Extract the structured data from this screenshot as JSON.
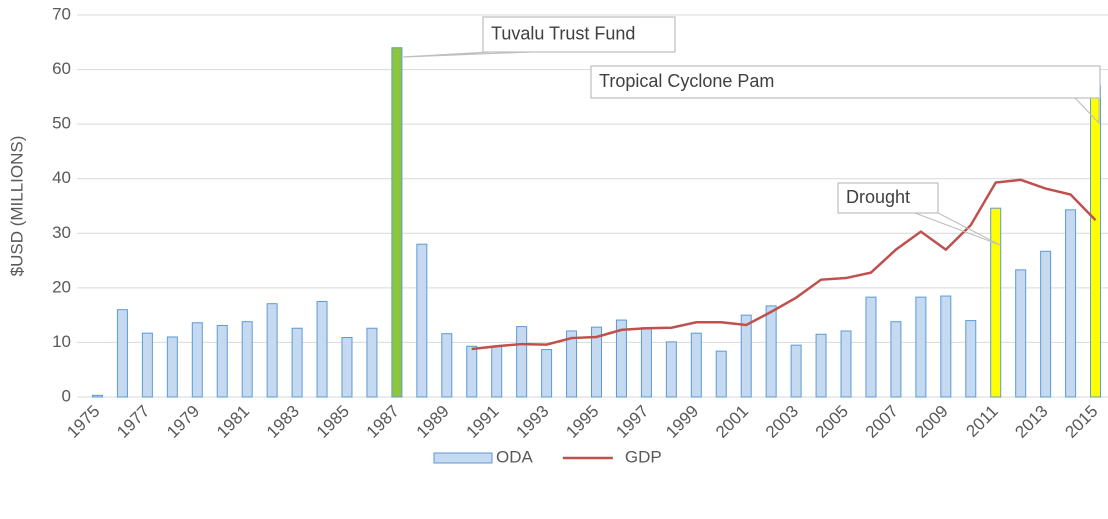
{
  "chart_data": {
    "type": "bar",
    "ylabel": "$USD (MILLIONS)",
    "categories": [
      "1975",
      null,
      "1977",
      null,
      "1979",
      null,
      "1981",
      null,
      "1983",
      null,
      "1985",
      null,
      "1987",
      null,
      "1989",
      null,
      "1991",
      null,
      "1993",
      null,
      "1995",
      null,
      "1997",
      null,
      "1999",
      null,
      "2001",
      null,
      "2003",
      null,
      "2005",
      null,
      "2007",
      null,
      "2009",
      null,
      "2011",
      null,
      "2013",
      null,
      "2015"
    ],
    "series": [
      {
        "name": "ODA",
        "type": "bar",
        "color": "#5b9bd5",
        "point_colors": [
          "#c5d9f1",
          "#c5d9f1",
          "#c5d9f1",
          "#c5d9f1",
          "#c5d9f1",
          "#c5d9f1",
          "#c5d9f1",
          "#c5d9f1",
          "#c5d9f1",
          "#c5d9f1",
          "#c5d9f1",
          "#c5d9f1",
          "#8cc63f",
          "#c5d9f1",
          "#c5d9f1",
          "#c5d9f1",
          "#c5d9f1",
          "#c5d9f1",
          "#c5d9f1",
          "#c5d9f1",
          "#c5d9f1",
          "#c5d9f1",
          "#c5d9f1",
          "#c5d9f1",
          "#c5d9f1",
          "#c5d9f1",
          "#c5d9f1",
          "#c5d9f1",
          "#c5d9f1",
          "#c5d9f1",
          "#c5d9f1",
          "#c5d9f1",
          "#c5d9f1",
          "#c5d9f1",
          "#c5d9f1",
          "#c5d9f1",
          "#ffff00",
          "#c5d9f1",
          "#c5d9f1",
          "#c5d9f1",
          "#ffff00"
        ],
        "values": [
          0.3,
          16,
          11.7,
          11,
          13.6,
          13.1,
          13.8,
          17.1,
          12.6,
          17.5,
          10.9,
          12.6,
          64,
          28,
          11.6,
          9.3,
          9.3,
          12.9,
          8.7,
          12.1,
          12.8,
          14.1,
          12.7,
          10.1,
          11.7,
          8.4,
          15,
          16.7,
          9.5,
          11.5,
          12.1,
          18.3,
          13.8,
          18.3,
          18.5,
          14,
          34.6,
          23.3,
          26.7,
          34.3,
          57
        ]
      },
      {
        "name": "GDP",
        "type": "line",
        "color": "#c0504d",
        "values": [
          null,
          null,
          null,
          null,
          null,
          null,
          null,
          null,
          null,
          null,
          null,
          null,
          null,
          null,
          null,
          8.8,
          9.3,
          9.7,
          9.6,
          10.8,
          11,
          12.3,
          12.6,
          12.7,
          13.7,
          13.7,
          13.2,
          15.6,
          18.2,
          21.5,
          21.8,
          22.8,
          27,
          30.3,
          27,
          31.5,
          39.3,
          39.8,
          38.2,
          37.1,
          32.4
        ]
      }
    ],
    "annotations": [
      "Tuvalu Trust Fund",
      "Tropical Cyclone Pam",
      "Drought"
    ],
    "ylim": [
      0,
      70
    ],
    "yticks": [
      0,
      10,
      20,
      30,
      40,
      50,
      60,
      70
    ],
    "grid": true,
    "legend": "bottom"
  }
}
